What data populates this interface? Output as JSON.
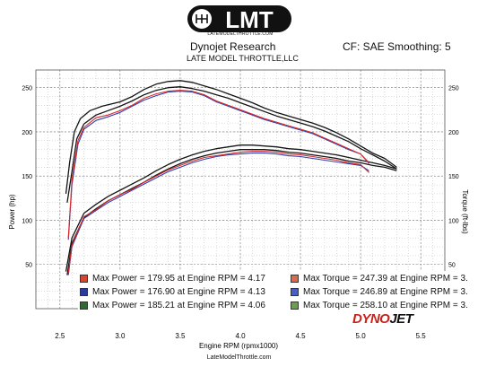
{
  "header": {
    "logo_text": "LMT",
    "logo_url": "LATEMODELTHROTTLE.COM",
    "title": "Dynojet Research",
    "subtitle": "LATE MODEL THROTTLE,LLC",
    "correction": "CF: SAE Smoothing: 5"
  },
  "footer": {
    "url": "LateModelThrottle.com",
    "brand_a": "DYNO",
    "brand_b": "JET"
  },
  "colors": {
    "red": "#d42a2a",
    "blue": "#2f3fb0",
    "black": "#151515",
    "grid": "#8c8c8c"
  },
  "legend": {
    "power": [
      {
        "text": "Max Power = 179.95 at Engine RPM = 4.17",
        "color": "#d9462b"
      },
      {
        "text": "Max Power = 176.90 at Engine RPM = 4.13",
        "color": "#2a3b9e"
      },
      {
        "text": "Max Power = 185.21 at Engine RPM = 4.06",
        "color": "#2e6b2e"
      }
    ],
    "torque": [
      {
        "text": "Max Torque = 247.39 at Engine RPM = 3.",
        "color": "#e06a48"
      },
      {
        "text": "Max Torque = 246.89 at Engine RPM = 3.",
        "color": "#4560c9"
      },
      {
        "text": "Max Torque = 258.10 at Engine RPM = 3.",
        "color": "#6aa04a"
      }
    ]
  },
  "chart_data": {
    "type": "line",
    "xlabel": "Engine RPM (rpmx1000)",
    "ylabel_left": "Power (hp)",
    "ylabel_right": "Torque (ft-lbs)",
    "xlim": [
      2.3,
      5.7
    ],
    "ylim": [
      0,
      270
    ],
    "x_ticks": [
      2.5,
      3.0,
      3.5,
      4.0,
      4.5,
      5.0,
      5.5
    ],
    "y_ticks_left": [
      50,
      100,
      150,
      200,
      250
    ],
    "y_ticks_right": [
      50,
      100,
      150,
      200,
      250
    ],
    "grid": true,
    "series": [
      {
        "color": "red",
        "measure": "torque",
        "x": [
          2.57,
          2.6,
          2.65,
          2.7,
          2.8,
          2.9,
          3.0,
          3.1,
          3.2,
          3.3,
          3.4,
          3.5,
          3.6,
          3.7,
          3.8,
          3.9,
          4.0,
          4.1,
          4.2,
          4.3,
          4.4,
          4.5,
          4.6,
          4.7,
          4.8,
          4.9,
          5.0,
          5.07
        ],
        "y": [
          80,
          145,
          190,
          205,
          216,
          219,
          224,
          230,
          238,
          243,
          246,
          247,
          246,
          242,
          235,
          230,
          225,
          220,
          215,
          211,
          207,
          203,
          199,
          193,
          187,
          181,
          175,
          164
        ]
      },
      {
        "color": "blue",
        "measure": "torque",
        "x": [
          2.57,
          2.6,
          2.65,
          2.7,
          2.8,
          2.9,
          3.0,
          3.1,
          3.2,
          3.3,
          3.4,
          3.5,
          3.6,
          3.7,
          3.8,
          3.9,
          4.0,
          4.1,
          4.2,
          4.3,
          4.4,
          4.5,
          4.6,
          4.7,
          4.8,
          4.9,
          5.0,
          5.07
        ],
        "y": [
          78,
          140,
          186,
          203,
          213,
          217,
          222,
          229,
          236,
          241,
          245,
          246,
          245,
          241,
          234,
          229,
          224,
          219,
          214,
          210,
          206,
          202,
          198,
          192,
          186,
          180,
          175,
          165
        ]
      },
      {
        "color": "black",
        "measure": "torque",
        "x": [
          2.55,
          2.58,
          2.62,
          2.67,
          2.75,
          2.85,
          3.0,
          3.1,
          3.2,
          3.3,
          3.4,
          3.5,
          3.6,
          3.7,
          3.8,
          3.9,
          4.0,
          4.1,
          4.2,
          4.3,
          4.4,
          4.5,
          4.6,
          4.7,
          4.8,
          4.9,
          5.0,
          5.1,
          5.2,
          5.3
        ],
        "y": [
          130,
          165,
          200,
          215,
          224,
          229,
          234,
          240,
          248,
          254,
          257,
          258,
          256,
          252,
          248,
          243,
          238,
          233,
          227,
          222,
          218,
          214,
          210,
          205,
          199,
          192,
          184,
          176,
          170,
          160
        ]
      },
      {
        "color": "black",
        "measure": "torque",
        "x": [
          2.56,
          2.6,
          2.64,
          2.7,
          2.8,
          2.9,
          3.0,
          3.1,
          3.2,
          3.3,
          3.4,
          3.5,
          3.6,
          3.7,
          3.8,
          3.9,
          4.0,
          4.1,
          4.2,
          4.3,
          4.4,
          4.5,
          4.6,
          4.7,
          4.8,
          4.9,
          5.0,
          5.1,
          5.2,
          5.3
        ],
        "y": [
          120,
          155,
          192,
          209,
          219,
          224,
          229,
          235,
          242,
          247,
          250,
          251,
          249,
          246,
          242,
          238,
          233,
          228,
          223,
          218,
          214,
          210,
          206,
          201,
          195,
          189,
          181,
          174,
          167,
          158
        ]
      },
      {
        "color": "red",
        "measure": "power",
        "x": [
          2.57,
          2.6,
          2.7,
          2.8,
          2.9,
          3.0,
          3.1,
          3.2,
          3.3,
          3.4,
          3.5,
          3.6,
          3.7,
          3.8,
          3.9,
          4.0,
          4.1,
          4.2,
          4.3,
          4.4,
          4.5,
          4.6,
          4.7,
          4.8,
          4.9,
          5.0,
          5.07
        ],
        "y": [
          40,
          72,
          104,
          112,
          122,
          129,
          135,
          143,
          150,
          157,
          162,
          167,
          171,
          173,
          175,
          177,
          178,
          178,
          177,
          175,
          174,
          172,
          170,
          168,
          165,
          163,
          154
        ]
      },
      {
        "color": "blue",
        "measure": "power",
        "x": [
          2.57,
          2.6,
          2.7,
          2.8,
          2.9,
          3.0,
          3.1,
          3.2,
          3.3,
          3.4,
          3.5,
          3.6,
          3.7,
          3.8,
          3.9,
          4.0,
          4.1,
          4.2,
          4.3,
          4.4,
          4.5,
          4.6,
          4.7,
          4.8,
          4.9,
          5.0,
          5.07
        ],
        "y": [
          38,
          70,
          102,
          111,
          120,
          127,
          134,
          141,
          148,
          155,
          160,
          165,
          169,
          172,
          174,
          175,
          176,
          176,
          175,
          173,
          172,
          170,
          168,
          166,
          164,
          162,
          156
        ]
      },
      {
        "color": "black",
        "measure": "power",
        "x": [
          2.55,
          2.6,
          2.7,
          2.8,
          2.9,
          3.0,
          3.1,
          3.2,
          3.3,
          3.4,
          3.5,
          3.6,
          3.7,
          3.8,
          3.9,
          4.0,
          4.1,
          4.2,
          4.3,
          4.4,
          4.5,
          4.6,
          4.7,
          4.8,
          4.9,
          5.0,
          5.1,
          5.2,
          5.3
        ],
        "y": [
          42,
          80,
          108,
          118,
          127,
          134,
          141,
          148,
          156,
          163,
          169,
          174,
          178,
          181,
          183,
          185,
          185,
          184,
          183,
          181,
          180,
          178,
          176,
          174,
          171,
          168,
          165,
          162,
          158
        ]
      },
      {
        "color": "black",
        "measure": "power",
        "x": [
          2.56,
          2.6,
          2.7,
          2.8,
          2.9,
          3.0,
          3.1,
          3.2,
          3.3,
          3.4,
          3.5,
          3.6,
          3.7,
          3.8,
          3.9,
          4.0,
          4.1,
          4.2,
          4.3,
          4.4,
          4.5,
          4.6,
          4.7,
          4.8,
          4.9,
          5.0,
          5.1,
          5.2,
          5.3
        ],
        "y": [
          38,
          74,
          103,
          113,
          122,
          129,
          136,
          143,
          151,
          158,
          164,
          169,
          173,
          176,
          178,
          180,
          180,
          180,
          179,
          177,
          176,
          174,
          172,
          170,
          167,
          165,
          162,
          160,
          156
        ]
      }
    ]
  }
}
